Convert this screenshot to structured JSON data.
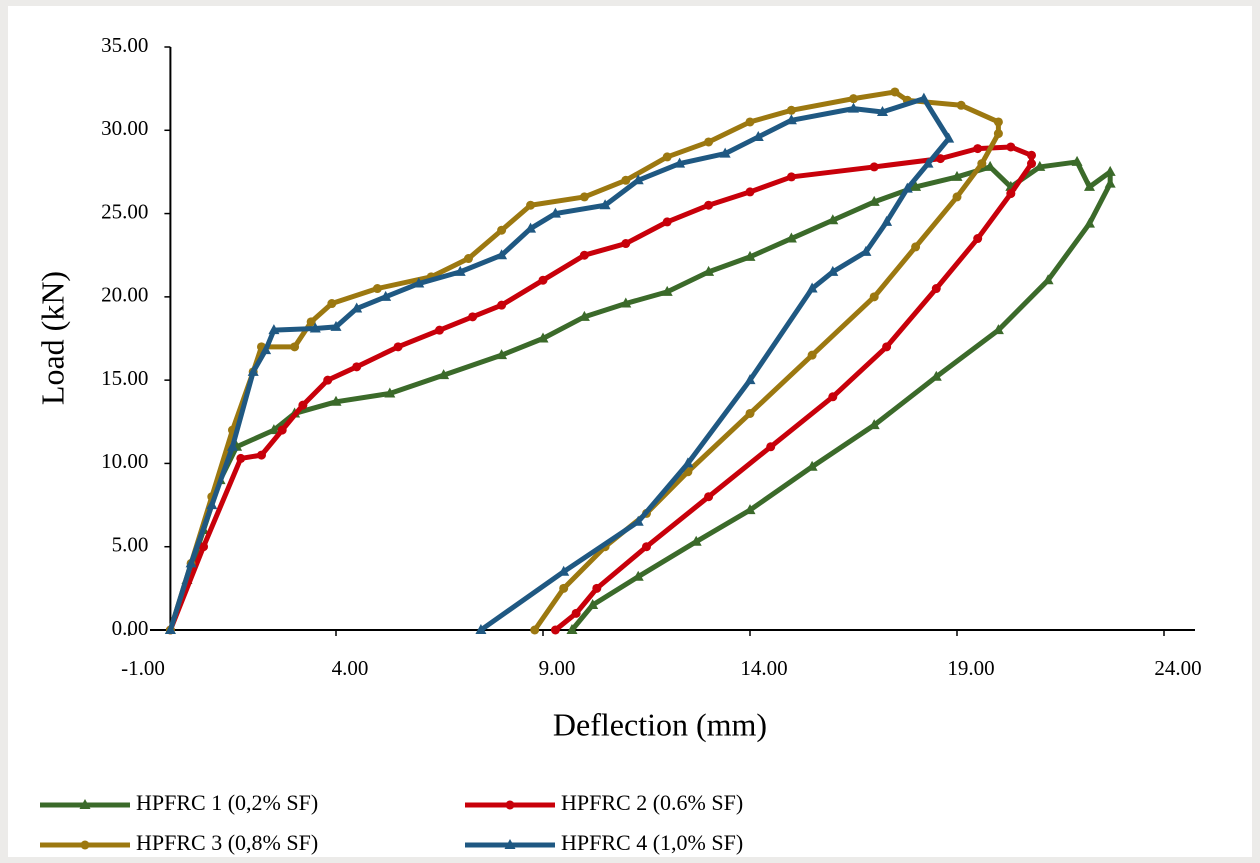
{
  "chart_data": {
    "type": "line",
    "x_label": "Deflection (mm)",
    "y_label": "Load (kN)",
    "xlim": [
      -1,
      24
    ],
    "ylim": [
      0,
      35
    ],
    "xticks": [
      {
        "value": -1,
        "label": "-1.00"
      },
      {
        "value": 4,
        "label": "4.00"
      },
      {
        "value": 9,
        "label": "9.00"
      },
      {
        "value": 14,
        "label": "14.00"
      },
      {
        "value": 19,
        "label": "19.00"
      },
      {
        "value": 24,
        "label": "24.00"
      }
    ],
    "yticks": [
      {
        "value": 0,
        "label": "0.00"
      },
      {
        "value": 5,
        "label": "5.00"
      },
      {
        "value": 10,
        "label": "10.00"
      },
      {
        "value": 15,
        "label": "15.00"
      },
      {
        "value": 20,
        "label": "20.00"
      },
      {
        "value": 25,
        "label": "25.00"
      },
      {
        "value": 30,
        "label": "30.00"
      },
      {
        "value": 35,
        "label": "35.00"
      }
    ],
    "grid": false,
    "series": [
      {
        "name": "HPFRC 1 (0,2% SF)",
        "color": "#3b6a2a",
        "marker": "triangle",
        "x": [
          0,
          0.4,
          0.8,
          1.2,
          1.6,
          2.5,
          3,
          4,
          5.3,
          6.6,
          8,
          9,
          10,
          11,
          12,
          13,
          14,
          15,
          16,
          17,
          18,
          19,
          19.8,
          20.3,
          21,
          21.9,
          22.2,
          22.7,
          22.7,
          22.2,
          21.2,
          20,
          18.5,
          17,
          15.5,
          14,
          12.7,
          11.3,
          10.2,
          9.7
        ],
        "values": [
          0,
          3,
          6,
          9,
          11,
          12,
          13,
          13.7,
          14.2,
          15.3,
          16.5,
          17.5,
          18.8,
          19.6,
          20.3,
          21.5,
          22.4,
          23.5,
          24.6,
          25.7,
          26.6,
          27.2,
          27.8,
          26.6,
          27.8,
          28.1,
          26.6,
          27.5,
          26.8,
          24.4,
          21,
          18,
          15.2,
          12.3,
          9.8,
          7.2,
          5.3,
          3.2,
          1.5,
          0
        ]
      },
      {
        "name": "HPFRC 2 (0.6% SF)",
        "color": "#c8000a",
        "marker": "circle",
        "x": [
          0,
          0.8,
          1.7,
          2.2,
          2.7,
          3.2,
          3.8,
          4.5,
          5.5,
          6.5,
          7.3,
          8,
          9,
          10,
          11,
          12,
          13,
          14,
          15,
          17,
          18.6,
          19.5,
          20.3,
          20.8,
          20.8,
          20.3,
          19.5,
          18.5,
          17.3,
          16,
          14.5,
          13,
          11.5,
          10.3,
          9.8,
          9.3
        ],
        "values": [
          0,
          5,
          10.3,
          10.5,
          12,
          13.5,
          15,
          15.8,
          17,
          18,
          18.8,
          19.5,
          21,
          22.5,
          23.2,
          24.5,
          25.5,
          26.3,
          27.2,
          27.8,
          28.3,
          28.9,
          29,
          28.5,
          28,
          26.2,
          23.5,
          20.5,
          17,
          14,
          11,
          8,
          5,
          2.5,
          1,
          0
        ]
      },
      {
        "name": "HPFRC 3 (0,8% SF)",
        "color": "#9c7810",
        "marker": "circle",
        "x": [
          0,
          0.5,
          1,
          1.5,
          2,
          2.2,
          3,
          3.4,
          3.9,
          5,
          6.3,
          7.2,
          8,
          8.7,
          10,
          11,
          12,
          13,
          14,
          15,
          16.5,
          17.5,
          17.8,
          19.1,
          20,
          20,
          19.6,
          19,
          18,
          17,
          15.5,
          14,
          12.5,
          11.5,
          10.5,
          9.5,
          8.8
        ],
        "values": [
          0,
          4,
          8,
          12,
          15.5,
          17,
          17,
          18.5,
          19.6,
          20.5,
          21.2,
          22.3,
          24,
          25.5,
          26,
          27,
          28.4,
          29.3,
          30.5,
          31.2,
          31.9,
          32.3,
          31.8,
          31.5,
          30.5,
          29.8,
          28,
          26,
          23,
          20,
          16.5,
          13,
          9.5,
          7,
          5,
          2.5,
          0
        ]
      },
      {
        "name": "HPFRC 4 (1,0% SF)",
        "color": "#1f5882",
        "marker": "triangle",
        "x": [
          0,
          0.5,
          1,
          1.5,
          2,
          2.3,
          2.5,
          3.5,
          4,
          4.5,
          5.2,
          6,
          7,
          8,
          8.7,
          9.3,
          10.5,
          11.3,
          12.3,
          13.4,
          14.2,
          15,
          16.5,
          17.2,
          18.2,
          18.8,
          18.3,
          17.8,
          17.3,
          16.8,
          16,
          15.5,
          14,
          12.5,
          11.3,
          9.5,
          7.5
        ],
        "values": [
          0,
          4,
          7.5,
          11,
          15.5,
          16.8,
          18,
          18.1,
          18.2,
          19.3,
          20,
          20.8,
          21.5,
          22.5,
          24.1,
          25,
          25.5,
          27,
          28,
          28.6,
          29.6,
          30.6,
          31.3,
          31.1,
          31.9,
          29.5,
          28,
          26.5,
          24.5,
          22.7,
          21.5,
          20.5,
          15,
          10,
          6.5,
          3.5,
          0
        ]
      }
    ]
  }
}
